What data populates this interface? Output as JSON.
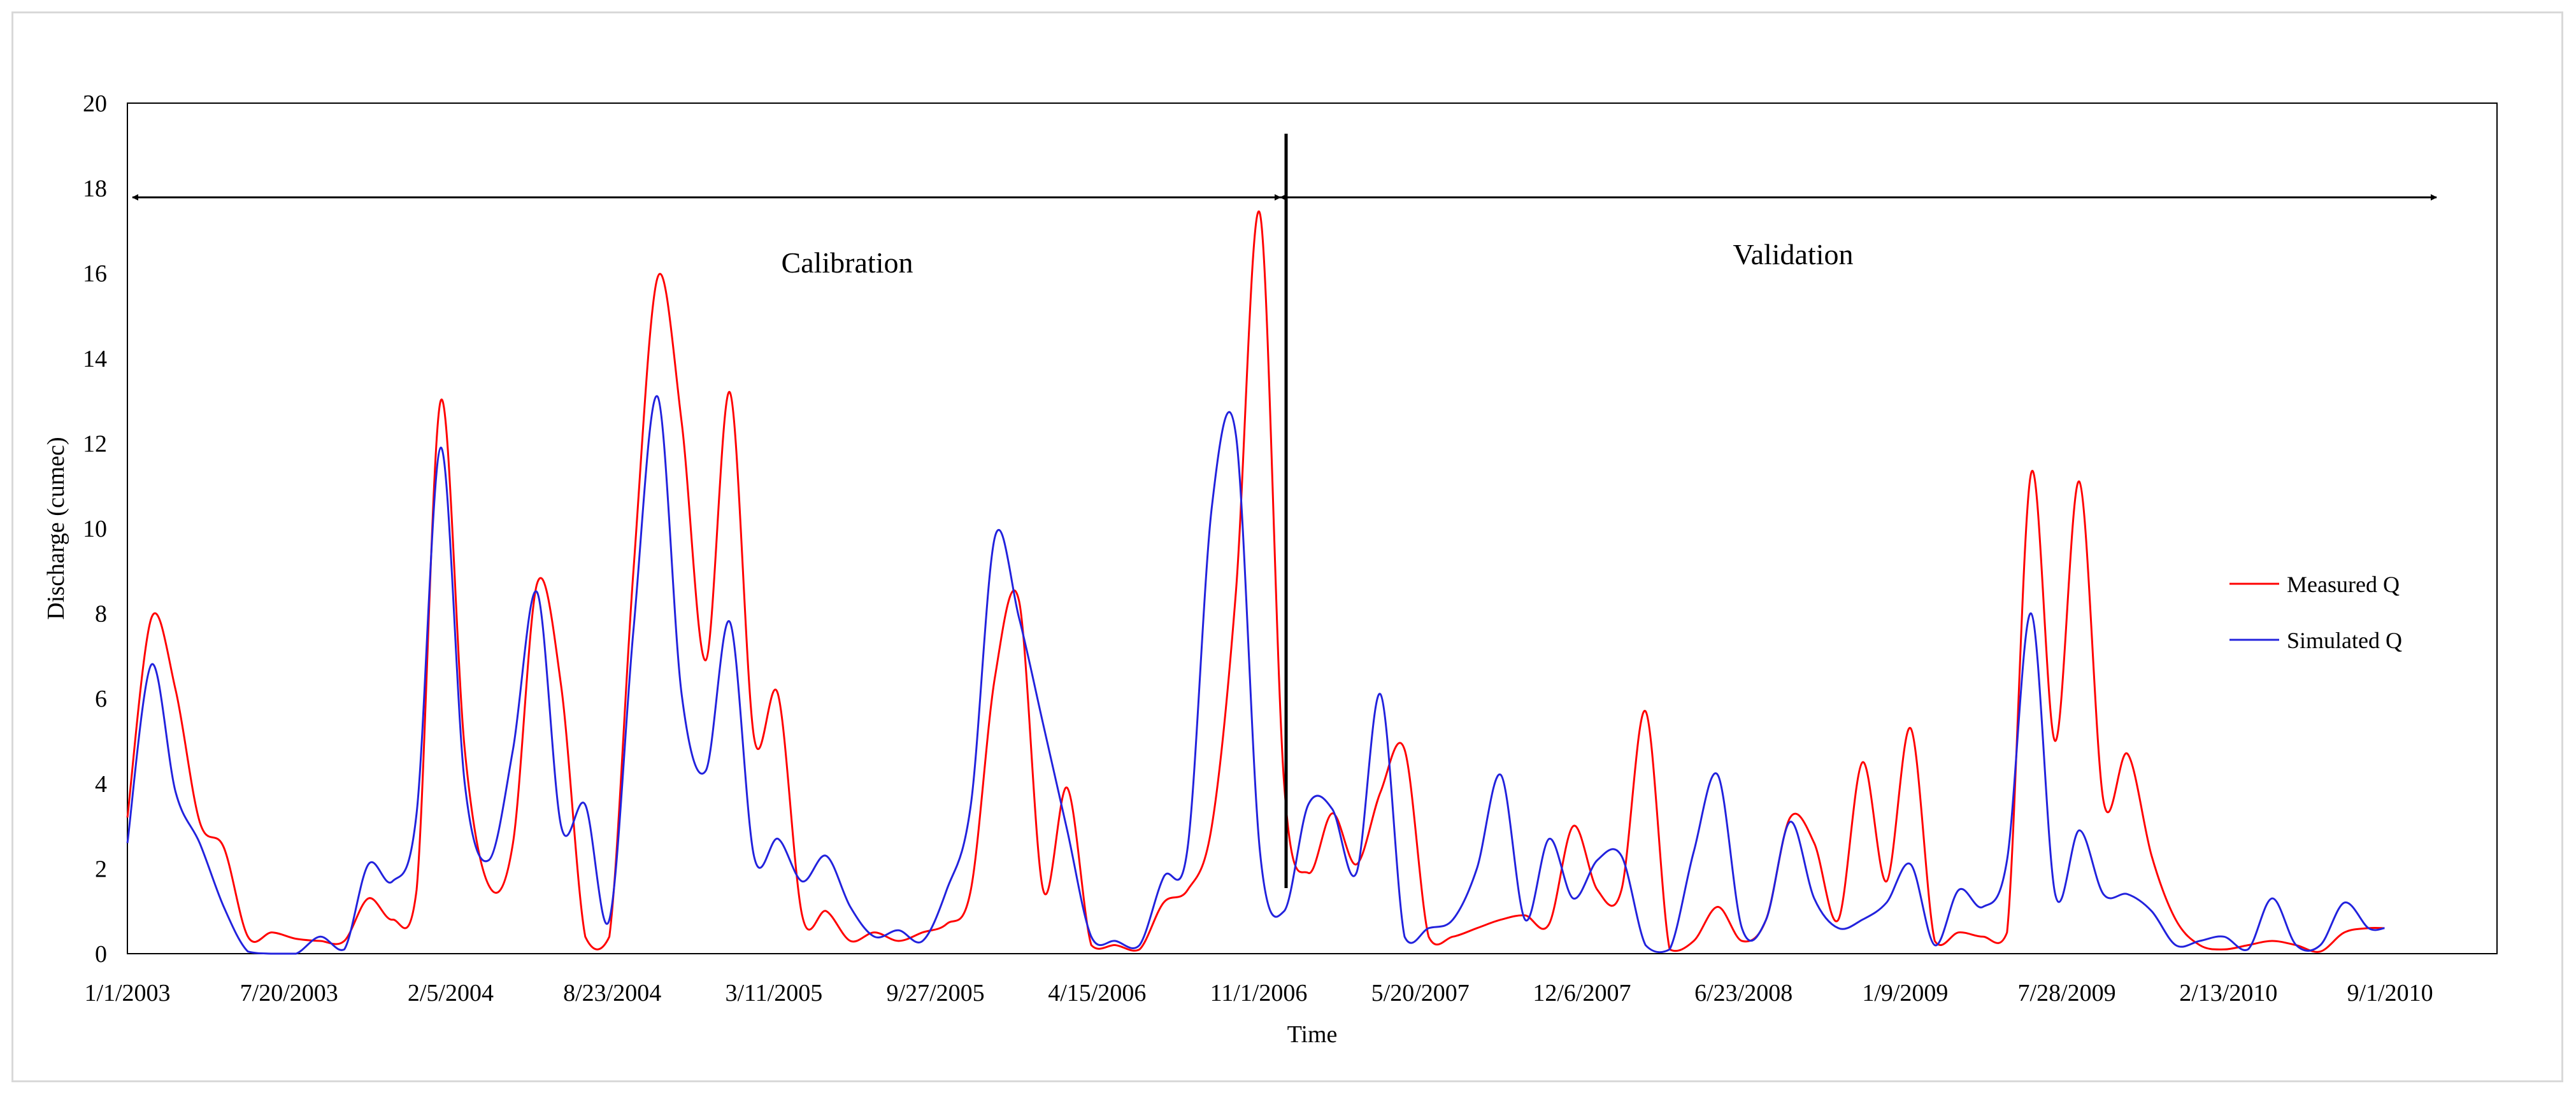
{
  "chart_data": {
    "type": "line",
    "xlabel": "Time",
    "ylabel": "Discharge  (cumec)",
    "ylim": [
      0,
      20
    ],
    "yticks": [
      0,
      2,
      4,
      6,
      8,
      10,
      12,
      14,
      16,
      18,
      20
    ],
    "xticks": [
      "1/1/2003",
      "7/20/2003",
      "2/5/2004",
      "8/23/2004",
      "3/11/2005",
      "9/27/2005",
      "4/15/2006",
      "11/1/2006",
      "5/20/2007",
      "12/6/2007",
      "6/23/2008",
      "1/9/2009",
      "7/28/2009",
      "2/13/2010",
      "9/1/2010"
    ],
    "x_range_days": [
      0,
      2950
    ],
    "annotations": {
      "calibration": "Calibration",
      "validation": "Validation",
      "split_day": 1410
    },
    "legend_position": "right",
    "series": [
      {
        "name": "Measured Q",
        "color": "#ff0000",
        "points": [
          [
            0,
            3.2
          ],
          [
            30,
            7.9
          ],
          [
            60,
            6.2
          ],
          [
            90,
            3.1
          ],
          [
            120,
            2.5
          ],
          [
            150,
            0.4
          ],
          [
            180,
            0.5
          ],
          [
            210,
            0.35
          ],
          [
            240,
            0.3
          ],
          [
            270,
            0.3
          ],
          [
            300,
            1.3
          ],
          [
            330,
            0.8
          ],
          [
            360,
            1.5
          ],
          [
            390,
            13.0
          ],
          [
            420,
            4.8
          ],
          [
            450,
            1.6
          ],
          [
            480,
            2.6
          ],
          [
            510,
            8.7
          ],
          [
            540,
            6.3
          ],
          [
            570,
            0.4
          ],
          [
            600,
            0.4
          ],
          [
            630,
            9.0
          ],
          [
            660,
            15.9
          ],
          [
            690,
            12.5
          ],
          [
            720,
            6.9
          ],
          [
            750,
            13.2
          ],
          [
            780,
            5.1
          ],
          [
            810,
            6.1
          ],
          [
            840,
            0.9
          ],
          [
            870,
            1.0
          ],
          [
            900,
            0.3
          ],
          [
            930,
            0.5
          ],
          [
            960,
            0.3
          ],
          [
            990,
            0.5
          ],
          [
            1020,
            0.7
          ],
          [
            1050,
            1.5
          ],
          [
            1080,
            6.5
          ],
          [
            1110,
            8.3
          ],
          [
            1140,
            1.5
          ],
          [
            1170,
            3.9
          ],
          [
            1200,
            0.2
          ],
          [
            1230,
            0.2
          ],
          [
            1260,
            0.1
          ],
          [
            1290,
            1.2
          ],
          [
            1320,
            1.5
          ],
          [
            1350,
            3.0
          ],
          [
            1380,
            8.5
          ],
          [
            1410,
            17.4
          ],
          [
            1440,
            4.0
          ],
          [
            1470,
            1.9
          ],
          [
            1500,
            3.3
          ],
          [
            1530,
            2.1
          ],
          [
            1560,
            3.8
          ],
          [
            1590,
            4.8
          ],
          [
            1620,
            0.4
          ],
          [
            1650,
            0.4
          ],
          [
            1680,
            0.6
          ],
          [
            1710,
            0.8
          ],
          [
            1740,
            0.9
          ],
          [
            1770,
            0.7
          ],
          [
            1800,
            3.0
          ],
          [
            1830,
            1.5
          ],
          [
            1860,
            1.5
          ],
          [
            1890,
            5.7
          ],
          [
            1920,
            0.1
          ],
          [
            1950,
            0.3
          ],
          [
            1980,
            1.1
          ],
          [
            2010,
            0.3
          ],
          [
            2040,
            0.8
          ],
          [
            2070,
            3.2
          ],
          [
            2100,
            2.6
          ],
          [
            2130,
            0.8
          ],
          [
            2160,
            4.5
          ],
          [
            2190,
            1.7
          ],
          [
            2220,
            5.3
          ],
          [
            2250,
            0.3
          ],
          [
            2280,
            0.5
          ],
          [
            2310,
            0.4
          ],
          [
            2340,
            0.5
          ],
          [
            2370,
            11.3
          ],
          [
            2400,
            5.0
          ],
          [
            2430,
            11.1
          ],
          [
            2460,
            3.6
          ],
          [
            2490,
            4.7
          ],
          [
            2520,
            2.3
          ],
          [
            2550,
            0.8
          ],
          [
            2580,
            0.2
          ],
          [
            2610,
            0.1
          ],
          [
            2640,
            0.2
          ],
          [
            2670,
            0.3
          ],
          [
            2700,
            0.2
          ],
          [
            2730,
            0.05
          ],
          [
            2760,
            0.5
          ],
          [
            2790,
            0.6
          ],
          [
            2810,
            0.6
          ]
        ]
      },
      {
        "name": "Simulated Q",
        "color": "#2222dd",
        "points": [
          [
            0,
            2.6
          ],
          [
            30,
            6.8
          ],
          [
            60,
            3.8
          ],
          [
            90,
            2.6
          ],
          [
            120,
            1.1
          ],
          [
            150,
            0.05
          ],
          [
            180,
            0.0
          ],
          [
            210,
            0.0
          ],
          [
            240,
            0.4
          ],
          [
            270,
            0.1
          ],
          [
            300,
            2.1
          ],
          [
            330,
            1.7
          ],
          [
            360,
            3.3
          ],
          [
            390,
            11.9
          ],
          [
            420,
            4.0
          ],
          [
            450,
            2.2
          ],
          [
            480,
            4.8
          ],
          [
            510,
            8.5
          ],
          [
            540,
            3.0
          ],
          [
            570,
            3.5
          ],
          [
            600,
            0.8
          ],
          [
            630,
            7.6
          ],
          [
            660,
            13.1
          ],
          [
            690,
            6.1
          ],
          [
            720,
            4.3
          ],
          [
            750,
            7.8
          ],
          [
            780,
            2.3
          ],
          [
            810,
            2.7
          ],
          [
            840,
            1.7
          ],
          [
            870,
            2.3
          ],
          [
            900,
            1.1
          ],
          [
            930,
            0.4
          ],
          [
            960,
            0.55
          ],
          [
            990,
            0.3
          ],
          [
            1020,
            1.5
          ],
          [
            1050,
            3.5
          ],
          [
            1080,
            9.8
          ],
          [
            1110,
            7.9
          ],
          [
            1140,
            5.4
          ],
          [
            1170,
            2.9
          ],
          [
            1200,
            0.4
          ],
          [
            1230,
            0.3
          ],
          [
            1260,
            0.2
          ],
          [
            1290,
            1.8
          ],
          [
            1320,
            2.5
          ],
          [
            1350,
            10.5
          ],
          [
            1380,
            12.2
          ],
          [
            1410,
            2.4
          ],
          [
            1440,
            1.0
          ],
          [
            1470,
            3.5
          ],
          [
            1500,
            3.4
          ],
          [
            1530,
            1.9
          ],
          [
            1560,
            6.1
          ],
          [
            1590,
            0.4
          ],
          [
            1620,
            0.6
          ],
          [
            1650,
            0.8
          ],
          [
            1680,
            2.0
          ],
          [
            1710,
            4.2
          ],
          [
            1740,
            0.8
          ],
          [
            1770,
            2.7
          ],
          [
            1800,
            1.3
          ],
          [
            1830,
            2.2
          ],
          [
            1860,
            2.3
          ],
          [
            1890,
            0.2
          ],
          [
            1920,
            0.1
          ],
          [
            1950,
            2.4
          ],
          [
            1980,
            4.2
          ],
          [
            2010,
            0.6
          ],
          [
            2040,
            0.8
          ],
          [
            2070,
            3.1
          ],
          [
            2100,
            1.3
          ],
          [
            2130,
            0.6
          ],
          [
            2160,
            0.8
          ],
          [
            2190,
            1.2
          ],
          [
            2220,
            2.1
          ],
          [
            2250,
            0.2
          ],
          [
            2280,
            1.5
          ],
          [
            2310,
            1.1
          ],
          [
            2340,
            2.2
          ],
          [
            2370,
            8.0
          ],
          [
            2400,
            1.4
          ],
          [
            2430,
            2.9
          ],
          [
            2460,
            1.4
          ],
          [
            2490,
            1.4
          ],
          [
            2520,
            1.0
          ],
          [
            2550,
            0.2
          ],
          [
            2580,
            0.3
          ],
          [
            2610,
            0.4
          ],
          [
            2640,
            0.1
          ],
          [
            2670,
            1.3
          ],
          [
            2700,
            0.2
          ],
          [
            2730,
            0.2
          ],
          [
            2760,
            1.2
          ],
          [
            2790,
            0.6
          ],
          [
            2810,
            0.6
          ]
        ]
      }
    ]
  }
}
